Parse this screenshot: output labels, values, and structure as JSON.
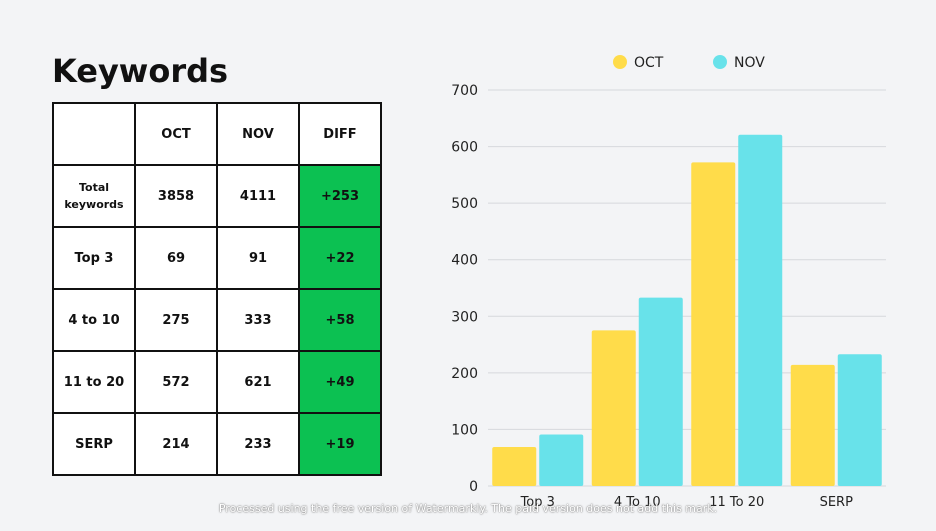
{
  "title": "Keywords",
  "table": {
    "headers": [
      "",
      "OCT",
      "NOV",
      "DIFF"
    ],
    "rows": [
      {
        "label": "Total keywords",
        "oct": "3858",
        "nov": "4111",
        "diff": "+253"
      },
      {
        "label": "Top 3",
        "oct": "69",
        "nov": "91",
        "diff": "+22"
      },
      {
        "label": "4 to 10",
        "oct": "275",
        "nov": "333",
        "diff": "+58"
      },
      {
        "label": "11 to 20",
        "oct": "572",
        "nov": "621",
        "diff": "+49"
      },
      {
        "label": "SERP",
        "oct": "214",
        "nov": "233",
        "diff": "+19"
      }
    ]
  },
  "chart_data": {
    "type": "bar",
    "categories": [
      "Top 3",
      "4 To 10",
      "11 To 20",
      "SERP"
    ],
    "series": [
      {
        "name": "OCT",
        "color": "#ffdc4a",
        "values": [
          69,
          275,
          572,
          214
        ]
      },
      {
        "name": "NOV",
        "color": "#68e2ea",
        "values": [
          91,
          333,
          621,
          233
        ]
      }
    ],
    "ylim": [
      0,
      700
    ],
    "yticks": [
      0,
      100,
      200,
      300,
      400,
      500,
      600,
      700
    ],
    "grid": true,
    "legend": "top"
  },
  "watermark": "Processed using the free version of Watermarkly. The paid version does not add this mark."
}
